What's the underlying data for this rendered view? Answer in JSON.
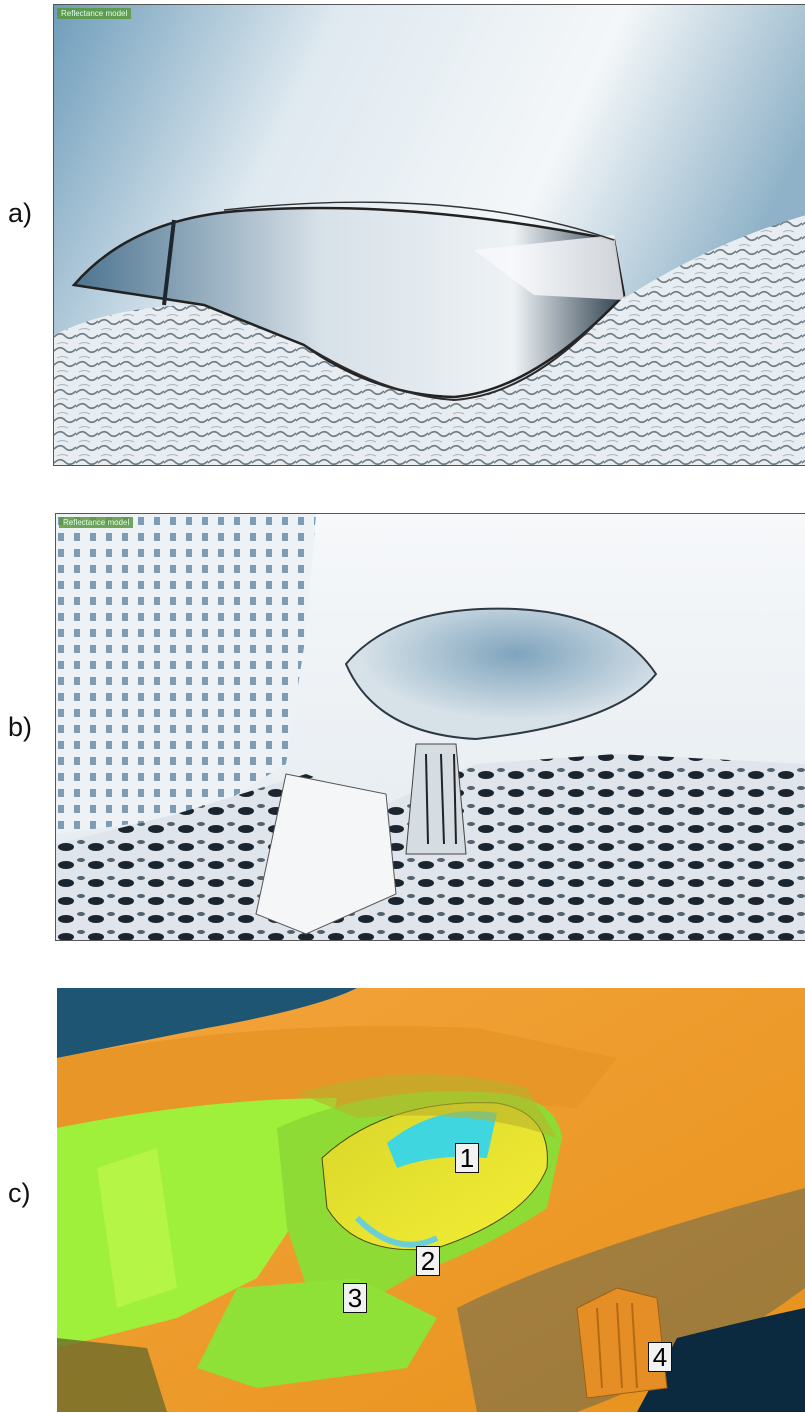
{
  "panels": [
    {
      "label": "a)",
      "hud_text": "Reflectance model"
    },
    {
      "label": "b)",
      "hud_text": "Reflectance model"
    },
    {
      "label": "c)"
    }
  ],
  "callouts": [
    "1",
    "2",
    "3",
    "4"
  ],
  "colors": {
    "ice_white": "#eef3f7",
    "ice_blue": "#4d86a8",
    "shadow_dark": "#1a2530",
    "orange": "#f2a233",
    "lime": "#9ff03a",
    "yellow": "#eded30",
    "cyan": "#3fd6e0",
    "deep_blue": "#0e3350"
  }
}
